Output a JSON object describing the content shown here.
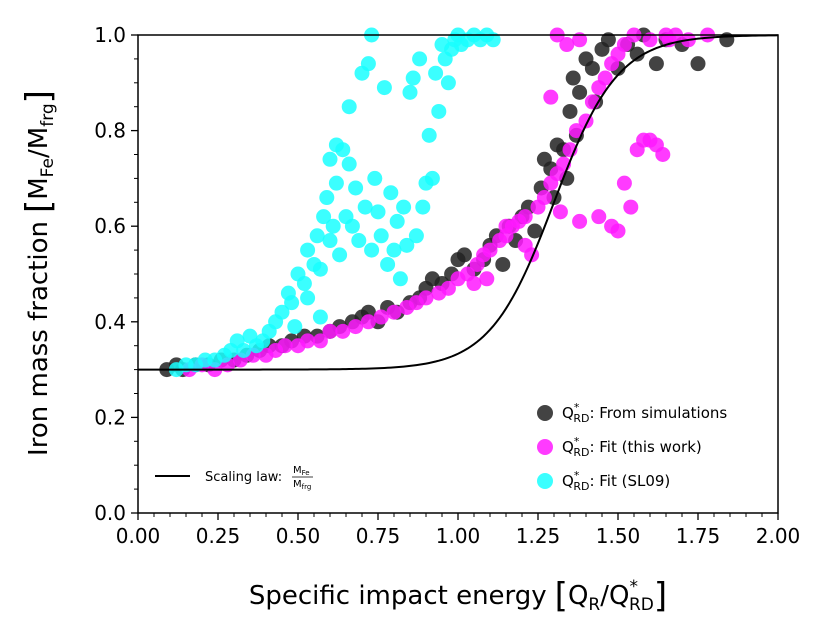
{
  "chart_data": {
    "type": "scatter",
    "title": "",
    "xlabel": {
      "main": "Specific impact energy",
      "num_base": "Q",
      "num_sub": "R",
      "den_base": "Q",
      "den_sup": "*",
      "den_sub": "RD"
    },
    "ylabel": {
      "main": "Iron mass fraction",
      "num_base": "M",
      "num_sub": "Fe",
      "den_base": "M",
      "den_sub": "frg"
    },
    "xlim": [
      0.0,
      2.0
    ],
    "ylim": [
      0.0,
      1.0
    ],
    "xticks": [
      "0.00",
      "0.25",
      "0.50",
      "0.75",
      "1.00",
      "1.25",
      "1.50",
      "1.75",
      "2.00"
    ],
    "yticks": [
      "0.0",
      "0.2",
      "0.4",
      "0.6",
      "0.8",
      "1.0"
    ],
    "legend_position": "lower-right",
    "series": [
      {
        "name": "From simulations",
        "label_base": "Q",
        "label_sup": "*",
        "label_sub": "RD",
        "label_rest": ": From simulations",
        "color": "#222222",
        "points": [
          [
            0.09,
            0.3
          ],
          [
            0.12,
            0.31
          ],
          [
            0.14,
            0.3
          ],
          [
            0.18,
            0.31
          ],
          [
            0.22,
            0.31
          ],
          [
            0.26,
            0.32
          ],
          [
            0.3,
            0.32
          ],
          [
            0.34,
            0.33
          ],
          [
            0.38,
            0.34
          ],
          [
            0.41,
            0.35
          ],
          [
            0.45,
            0.35
          ],
          [
            0.48,
            0.36
          ],
          [
            0.52,
            0.37
          ],
          [
            0.56,
            0.37
          ],
          [
            0.6,
            0.38
          ],
          [
            0.63,
            0.39
          ],
          [
            0.67,
            0.4
          ],
          [
            0.7,
            0.41
          ],
          [
            0.72,
            0.42
          ],
          [
            0.75,
            0.4
          ],
          [
            0.78,
            0.43
          ],
          [
            0.81,
            0.42
          ],
          [
            0.85,
            0.44
          ],
          [
            0.88,
            0.45
          ],
          [
            0.9,
            0.47
          ],
          [
            0.92,
            0.49
          ],
          [
            0.95,
            0.48
          ],
          [
            0.98,
            0.5
          ],
          [
            1.0,
            0.53
          ],
          [
            1.02,
            0.54
          ],
          [
            1.05,
            0.51
          ],
          [
            1.08,
            0.53
          ],
          [
            1.1,
            0.56
          ],
          [
            1.12,
            0.58
          ],
          [
            1.14,
            0.52
          ],
          [
            1.16,
            0.6
          ],
          [
            1.18,
            0.57
          ],
          [
            1.2,
            0.62
          ],
          [
            1.22,
            0.64
          ],
          [
            1.24,
            0.59
          ],
          [
            1.26,
            0.68
          ],
          [
            1.27,
            0.74
          ],
          [
            1.29,
            0.72
          ],
          [
            1.3,
            0.66
          ],
          [
            1.31,
            0.77
          ],
          [
            1.33,
            0.76
          ],
          [
            1.34,
            0.7
          ],
          [
            1.35,
            0.84
          ],
          [
            1.36,
            0.91
          ],
          [
            1.37,
            0.79
          ],
          [
            1.38,
            0.88
          ],
          [
            1.4,
            0.95
          ],
          [
            1.42,
            0.93
          ],
          [
            1.43,
            0.86
          ],
          [
            1.45,
            0.97
          ],
          [
            1.47,
            0.99
          ],
          [
            1.5,
            0.93
          ],
          [
            1.53,
            0.98
          ],
          [
            1.56,
            0.96
          ],
          [
            1.58,
            1.0
          ],
          [
            1.62,
            0.94
          ],
          [
            1.65,
            0.99
          ],
          [
            1.7,
            0.98
          ],
          [
            1.75,
            0.94
          ],
          [
            1.84,
            0.99
          ]
        ]
      },
      {
        "name": "Fit (this work)",
        "label_base": "Q",
        "label_sup": "*",
        "label_sub": "RD",
        "label_rest": ": Fit (this work)",
        "color": "#ff19ff",
        "points": [
          [
            0.16,
            0.3
          ],
          [
            0.2,
            0.31
          ],
          [
            0.24,
            0.3
          ],
          [
            0.28,
            0.31
          ],
          [
            0.32,
            0.32
          ],
          [
            0.36,
            0.33
          ],
          [
            0.4,
            0.33
          ],
          [
            0.43,
            0.34
          ],
          [
            0.46,
            0.35
          ],
          [
            0.5,
            0.35
          ],
          [
            0.53,
            0.36
          ],
          [
            0.57,
            0.36
          ],
          [
            0.6,
            0.38
          ],
          [
            0.64,
            0.38
          ],
          [
            0.68,
            0.39
          ],
          [
            0.72,
            0.4
          ],
          [
            0.76,
            0.41
          ],
          [
            0.8,
            0.42
          ],
          [
            0.84,
            0.43
          ],
          [
            0.87,
            0.44
          ],
          [
            0.9,
            0.45
          ],
          [
            0.94,
            0.46
          ],
          [
            0.97,
            0.47
          ],
          [
            1.0,
            0.49
          ],
          [
            1.03,
            0.5
          ],
          [
            1.06,
            0.52
          ],
          [
            1.08,
            0.54
          ],
          [
            1.1,
            0.55
          ],
          [
            1.13,
            0.57
          ],
          [
            1.15,
            0.58
          ],
          [
            1.17,
            0.6
          ],
          [
            1.19,
            0.61
          ],
          [
            1.21,
            0.62
          ],
          [
            1.23,
            0.54
          ],
          [
            1.25,
            0.64
          ],
          [
            1.27,
            0.66
          ],
          [
            1.29,
            0.69
          ],
          [
            1.31,
            0.71
          ],
          [
            1.33,
            0.73
          ],
          [
            1.35,
            0.76
          ],
          [
            1.37,
            0.8
          ],
          [
            1.38,
            0.61
          ],
          [
            1.4,
            0.82
          ],
          [
            1.42,
            0.86
          ],
          [
            1.44,
            0.89
          ],
          [
            1.46,
            0.91
          ],
          [
            1.48,
            0.94
          ],
          [
            1.5,
            0.96
          ],
          [
            1.52,
            0.98
          ],
          [
            1.54,
            0.64
          ],
          [
            1.56,
            0.76
          ],
          [
            1.58,
            0.78
          ],
          [
            1.6,
            0.78
          ],
          [
            1.62,
            0.77
          ],
          [
            1.64,
            0.75
          ],
          [
            1.66,
            0.99
          ],
          [
            1.68,
            1.0
          ],
          [
            1.72,
            0.99
          ],
          [
            1.78,
            1.0
          ],
          [
            1.32,
            0.63
          ],
          [
            1.44,
            0.62
          ],
          [
            1.48,
            0.6
          ],
          [
            1.5,
            0.59
          ],
          [
            1.52,
            0.69
          ],
          [
            1.29,
            0.87
          ],
          [
            1.31,
            1.0
          ],
          [
            1.34,
            0.98
          ],
          [
            1.38,
            0.99
          ],
          [
            1.55,
            1.0
          ],
          [
            1.6,
            0.99
          ],
          [
            1.65,
            1.0
          ],
          [
            1.21,
            0.56
          ],
          [
            1.15,
            0.6
          ],
          [
            1.09,
            0.49
          ],
          [
            1.05,
            0.48
          ]
        ]
      },
      {
        "name": "Fit (SL09)",
        "label_base": "Q",
        "label_sup": "*",
        "label_sub": "RD",
        "label_rest": ": Fit (SL09)",
        "color": "#19ffff",
        "points": [
          [
            0.12,
            0.3
          ],
          [
            0.15,
            0.31
          ],
          [
            0.18,
            0.31
          ],
          [
            0.21,
            0.32
          ],
          [
            0.24,
            0.32
          ],
          [
            0.27,
            0.33
          ],
          [
            0.29,
            0.34
          ],
          [
            0.31,
            0.36
          ],
          [
            0.33,
            0.34
          ],
          [
            0.35,
            0.37
          ],
          [
            0.37,
            0.35
          ],
          [
            0.39,
            0.36
          ],
          [
            0.41,
            0.38
          ],
          [
            0.43,
            0.4
          ],
          [
            0.45,
            0.42
          ],
          [
            0.47,
            0.46
          ],
          [
            0.48,
            0.44
          ],
          [
            0.5,
            0.5
          ],
          [
            0.52,
            0.48
          ],
          [
            0.53,
            0.55
          ],
          [
            0.55,
            0.52
          ],
          [
            0.56,
            0.58
          ],
          [
            0.57,
            0.51
          ],
          [
            0.58,
            0.62
          ],
          [
            0.59,
            0.66
          ],
          [
            0.6,
            0.57
          ],
          [
            0.61,
            0.6
          ],
          [
            0.62,
            0.69
          ],
          [
            0.62,
            0.77
          ],
          [
            0.63,
            0.54
          ],
          [
            0.64,
            0.76
          ],
          [
            0.65,
            0.62
          ],
          [
            0.66,
            0.73
          ],
          [
            0.66,
            0.85
          ],
          [
            0.67,
            0.6
          ],
          [
            0.68,
            0.68
          ],
          [
            0.69,
            0.57
          ],
          [
            0.7,
            0.92
          ],
          [
            0.71,
            0.64
          ],
          [
            0.72,
            0.94
          ],
          [
            0.73,
            0.55
          ],
          [
            0.73,
            1.0
          ],
          [
            0.74,
            0.7
          ],
          [
            0.75,
            0.63
          ],
          [
            0.76,
            0.58
          ],
          [
            0.77,
            0.89
          ],
          [
            0.78,
            0.52
          ],
          [
            0.79,
            0.67
          ],
          [
            0.8,
            0.55
          ],
          [
            0.81,
            0.61
          ],
          [
            0.82,
            0.49
          ],
          [
            0.83,
            0.64
          ],
          [
            0.84,
            0.56
          ],
          [
            0.85,
            0.88
          ],
          [
            0.86,
            0.91
          ],
          [
            0.87,
            0.58
          ],
          [
            0.88,
            0.95
          ],
          [
            0.89,
            0.64
          ],
          [
            0.9,
            0.69
          ],
          [
            0.91,
            0.79
          ],
          [
            0.92,
            0.7
          ],
          [
            0.93,
            0.92
          ],
          [
            0.94,
            0.84
          ],
          [
            0.95,
            0.98
          ],
          [
            0.96,
            0.95
          ],
          [
            0.97,
            0.9
          ],
          [
            0.98,
            0.97
          ],
          [
            0.99,
            0.99
          ],
          [
            1.0,
            1.0
          ],
          [
            1.01,
            0.98
          ],
          [
            1.03,
            0.99
          ],
          [
            1.05,
            1.0
          ],
          [
            1.07,
            0.99
          ],
          [
            1.09,
            1.0
          ],
          [
            1.11,
            0.99
          ],
          [
            0.6,
            0.74
          ],
          [
            0.53,
            0.45
          ],
          [
            0.57,
            0.41
          ],
          [
            0.49,
            0.39
          ]
        ]
      }
    ],
    "scaling_law": {
      "label": "Scaling law:",
      "frac_num": "M",
      "frac_num_sub": "Fe",
      "frac_den": "M",
      "frac_den_sub": "frg",
      "color": "#000000",
      "min": 0.3,
      "max": 1.0,
      "center": 1.3,
      "width": 0.27
    }
  }
}
